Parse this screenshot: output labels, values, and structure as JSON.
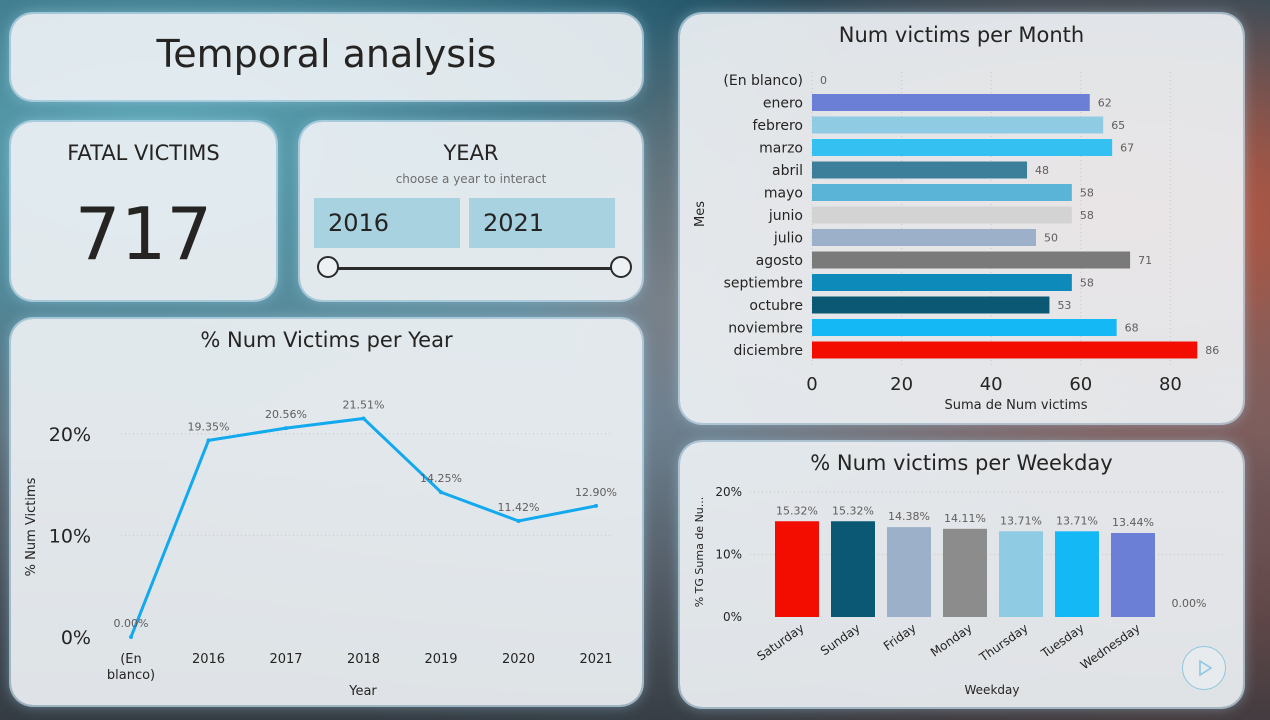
{
  "header": {
    "title": "Temporal analysis"
  },
  "kpi": {
    "label": "FATAL VICTIMS",
    "value": "717"
  },
  "year_filter": {
    "label": "YEAR",
    "hint": "choose a year to interact",
    "start": "2016",
    "end": "2021"
  },
  "colors": {
    "card_bg": "#ecf0f3",
    "line": "#12a9ef",
    "accent_red": "#f20d00"
  },
  "chart_data": [
    {
      "type": "line",
      "title": "% Num Victims per Year",
      "xlabel": "Year",
      "ylabel": "% Num Victims",
      "categories": [
        "(En blanco)",
        "2016",
        "2017",
        "2018",
        "2019",
        "2020",
        "2021"
      ],
      "values": [
        0.0,
        19.35,
        20.56,
        21.51,
        14.25,
        11.42,
        12.9
      ],
      "labels": [
        "0.00%",
        "19.35%",
        "20.56%",
        "21.51%",
        "14.25%",
        "11.42%",
        "12.90%"
      ],
      "yticks": [
        "0%",
        "10%",
        "20%"
      ],
      "ylim": [
        0,
        25
      ],
      "grid": true
    },
    {
      "type": "bar",
      "orientation": "horizontal",
      "title": "Num victims per Month",
      "xlabel": "Suma de Num victims",
      "ylabel": "Mes",
      "categories": [
        "(En blanco)",
        "enero",
        "febrero",
        "marzo",
        "abril",
        "mayo",
        "junio",
        "julio",
        "agosto",
        "septiembre",
        "octubre",
        "noviembre",
        "diciembre"
      ],
      "values": [
        0,
        62,
        65,
        67,
        48,
        58,
        58,
        50,
        71,
        58,
        53,
        68,
        86
      ],
      "colors": [
        "#cccccc",
        "#6b7fd7",
        "#8fcbe3",
        "#35c0f2",
        "#3b7f9b",
        "#5ab4d8",
        "#d3d3d3",
        "#9cb1c9",
        "#7a7a7a",
        "#0d8ab9",
        "#0a5873",
        "#14b8f5",
        "#f20d00"
      ],
      "xticks": [
        "0",
        "20",
        "40",
        "60",
        "80"
      ],
      "xlim": [
        0,
        90
      ],
      "grid": true
    },
    {
      "type": "bar",
      "title": "% Num victims per Weekday",
      "xlabel": "Weekday",
      "ylabel": "% TG Suma de Nu...",
      "categories": [
        "Saturday",
        "Sunday",
        "Friday",
        "Monday",
        "Thursday",
        "Tuesday",
        "Wednesday",
        ""
      ],
      "values": [
        15.32,
        15.32,
        14.38,
        14.11,
        13.71,
        13.71,
        13.44,
        0.0
      ],
      "labels": [
        "15.32%",
        "15.32%",
        "14.38%",
        "14.11%",
        "13.71%",
        "13.71%",
        "13.44%",
        "0.00%"
      ],
      "colors": [
        "#f20d00",
        "#0a5873",
        "#9cb1c9",
        "#8c8c8c",
        "#8fcbe3",
        "#14b8f5",
        "#6b7fd7",
        "#cccccc"
      ],
      "yticks": [
        "0%",
        "10%",
        "20%"
      ],
      "ylim": [
        0,
        20
      ],
      "grid": true
    }
  ],
  "icons": {
    "play": "play-icon"
  }
}
